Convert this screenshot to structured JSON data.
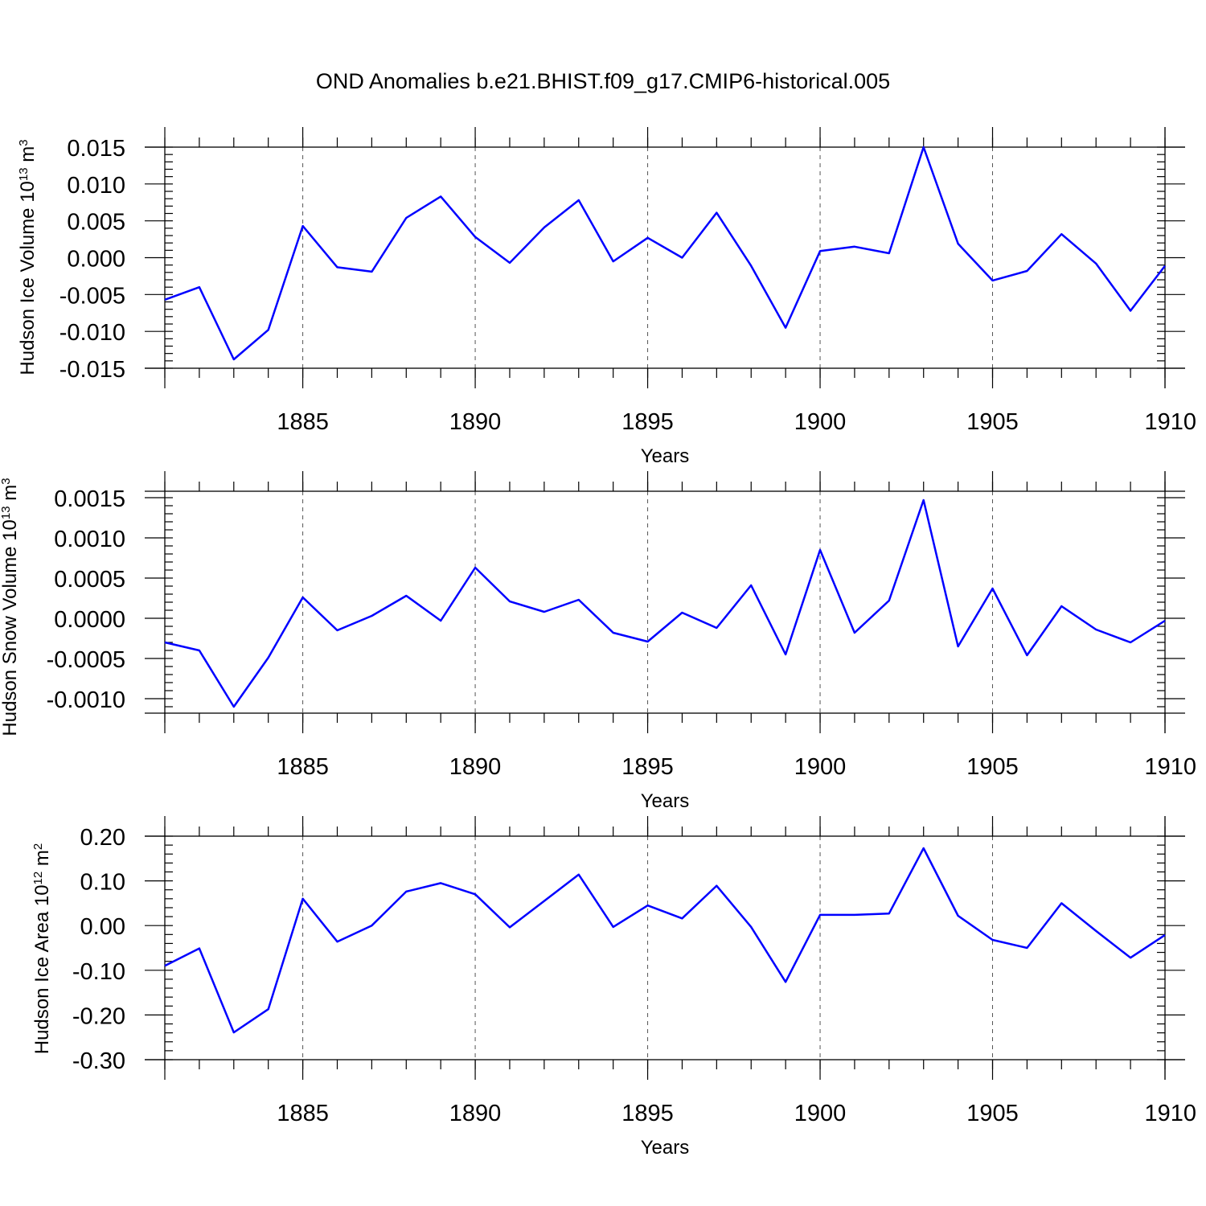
{
  "title": "OND Anomalies b.e21.BHIST.f09_g17.CMIP6-historical.005",
  "chart_data": [
    {
      "type": "line",
      "ylabel": "Hudson Ice Volume 10",
      "ylabel_exp": "13",
      "ylabel_unit": " m",
      "ylabel_unit_exp": "3",
      "xlabel": "Years",
      "color": "#0000ff",
      "xlim": [
        1881,
        1910
      ],
      "ylim": [
        -0.015,
        0.015
      ],
      "x_ticks": [
        1885,
        1890,
        1895,
        1900,
        1905,
        1910
      ],
      "y_ticks": [
        -0.015,
        -0.01,
        -0.005,
        0.0,
        0.005,
        0.01,
        0.015
      ],
      "y_tick_labels": [
        "-0.015",
        "-0.010",
        "-0.005",
        "0.000",
        "0.005",
        "0.010",
        "0.015"
      ],
      "y_minor_step": 0.001,
      "x": [
        1881,
        1882,
        1883,
        1884,
        1885,
        1886,
        1887,
        1888,
        1889,
        1890,
        1891,
        1892,
        1893,
        1894,
        1895,
        1896,
        1897,
        1898,
        1899,
        1900,
        1901,
        1902,
        1903,
        1904,
        1905,
        1906,
        1907,
        1908,
        1909,
        1910
      ],
      "values": [
        -0.0057,
        -0.004,
        -0.0138,
        -0.0098,
        0.0043,
        -0.0013,
        -0.0019,
        0.0054,
        0.0083,
        0.0028,
        -0.0007,
        0.0041,
        0.0078,
        -0.0005,
        0.0027,
        0.0,
        0.0061,
        -0.0011,
        -0.0095,
        0.0009,
        0.0015,
        0.0006,
        0.015,
        0.0019,
        -0.0031,
        -0.0018,
        0.0032,
        -0.0008,
        -0.0072,
        -0.0011
      ]
    },
    {
      "type": "line",
      "ylabel": "Hudson Snow Volume 10",
      "ylabel_exp": "13",
      "ylabel_unit": " m",
      "ylabel_unit_exp": "3",
      "xlabel": "Years",
      "color": "#0000ff",
      "xlim": [
        1881,
        1910
      ],
      "ylim": [
        -0.00118,
        0.00158
      ],
      "x_ticks": [
        1885,
        1890,
        1895,
        1900,
        1905,
        1910
      ],
      "y_ticks": [
        -0.001,
        -0.0005,
        0.0,
        0.0005,
        0.001,
        0.0015
      ],
      "y_tick_labels": [
        "-0.0010",
        "-0.0005",
        "0.0000",
        "0.0005",
        "0.0010",
        "0.0015"
      ],
      "y_minor_step": 0.0001,
      "x": [
        1881,
        1882,
        1883,
        1884,
        1885,
        1886,
        1887,
        1888,
        1889,
        1890,
        1891,
        1892,
        1893,
        1894,
        1895,
        1896,
        1897,
        1898,
        1899,
        1900,
        1901,
        1902,
        1903,
        1904,
        1905,
        1906,
        1907,
        1908,
        1909,
        1910
      ],
      "values": [
        -0.0003,
        -0.0004,
        -0.0011,
        -0.00049,
        0.00026,
        -0.00015,
        3e-05,
        0.00028,
        -3e-05,
        0.00063,
        0.00021,
        8e-05,
        0.00023,
        -0.00018,
        -0.00029,
        7e-05,
        -0.00012,
        0.00041,
        -0.00045,
        0.00085,
        -0.00018,
        0.00022,
        0.00147,
        -0.00035,
        0.00037,
        -0.00046,
        0.00015,
        -0.00014,
        -0.0003,
        -3e-05
      ]
    },
    {
      "type": "line",
      "ylabel": "Hudson Ice Area 10",
      "ylabel_exp": "12",
      "ylabel_unit": " m",
      "ylabel_unit_exp": "2",
      "xlabel": "Years",
      "color": "#0000ff",
      "xlim": [
        1881,
        1910
      ],
      "ylim": [
        -0.3,
        0.2
      ],
      "x_ticks": [
        1885,
        1890,
        1895,
        1900,
        1905,
        1910
      ],
      "y_ticks": [
        -0.3,
        -0.2,
        -0.1,
        0.0,
        0.1,
        0.2
      ],
      "y_tick_labels": [
        "-0.30",
        "-0.20",
        "-0.10",
        "0.00",
        "0.10",
        "0.20"
      ],
      "y_minor_step": 0.02,
      "x": [
        1881,
        1882,
        1883,
        1884,
        1885,
        1886,
        1887,
        1888,
        1889,
        1890,
        1891,
        1892,
        1893,
        1894,
        1895,
        1896,
        1897,
        1898,
        1899,
        1900,
        1901,
        1902,
        1903,
        1904,
        1905,
        1906,
        1907,
        1908,
        1909,
        1910
      ],
      "values": [
        -0.09,
        -0.051,
        -0.239,
        -0.187,
        0.06,
        -0.036,
        0.0,
        0.076,
        0.095,
        0.07,
        -0.004,
        0.055,
        0.114,
        -0.003,
        0.045,
        0.016,
        0.089,
        -0.003,
        -0.126,
        0.024,
        0.024,
        0.027,
        0.173,
        0.022,
        -0.032,
        -0.05,
        0.05,
        -0.012,
        -0.072,
        -0.021
      ]
    }
  ]
}
